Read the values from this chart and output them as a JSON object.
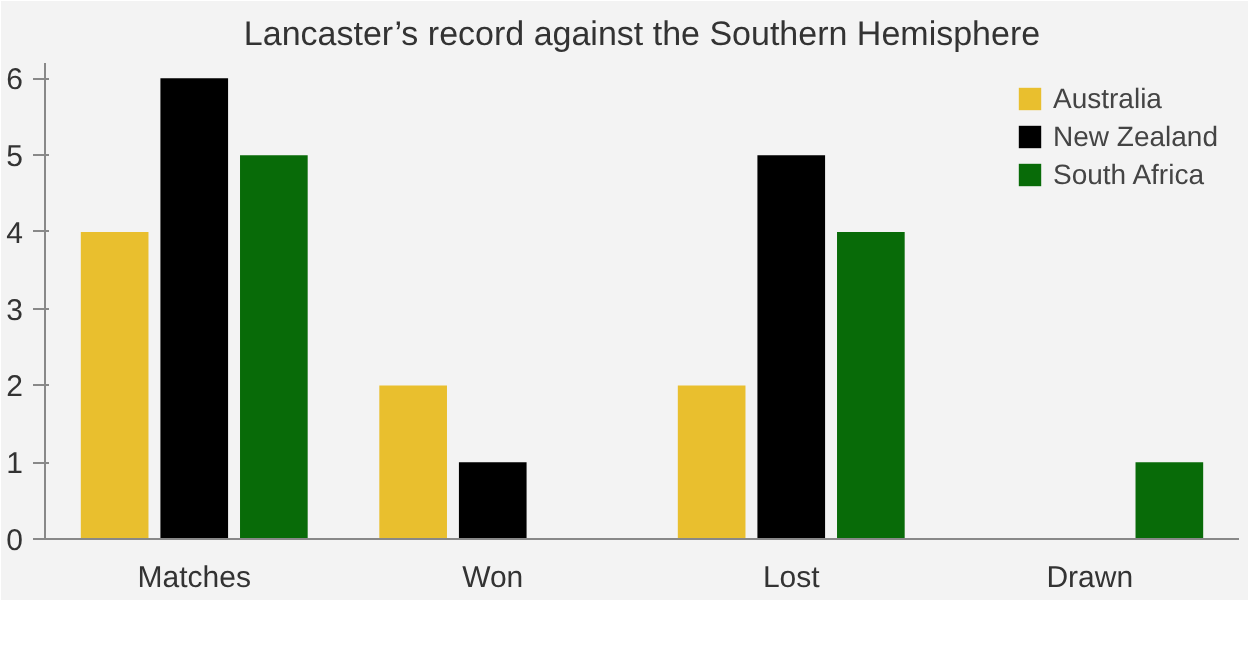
{
  "chart_data": {
    "type": "bar",
    "title": "Lancaster’s record against the Southern Hemisphere",
    "categories": [
      "Matches",
      "Won",
      "Lost",
      "Drawn"
    ],
    "series": [
      {
        "name": "Australia",
        "color": "#e9bf2e",
        "values": [
          4,
          2,
          2,
          0
        ]
      },
      {
        "name": "New Zealand",
        "color": "#000000",
        "values": [
          6,
          1,
          5,
          0
        ]
      },
      {
        "name": "South Africa",
        "color": "#086b08",
        "values": [
          5,
          0,
          4,
          1
        ]
      }
    ],
    "ylim": [
      0,
      6.2
    ],
    "yticks": [
      0,
      1,
      2,
      3,
      4,
      5,
      6
    ],
    "grid": false,
    "legend": "top right"
  }
}
